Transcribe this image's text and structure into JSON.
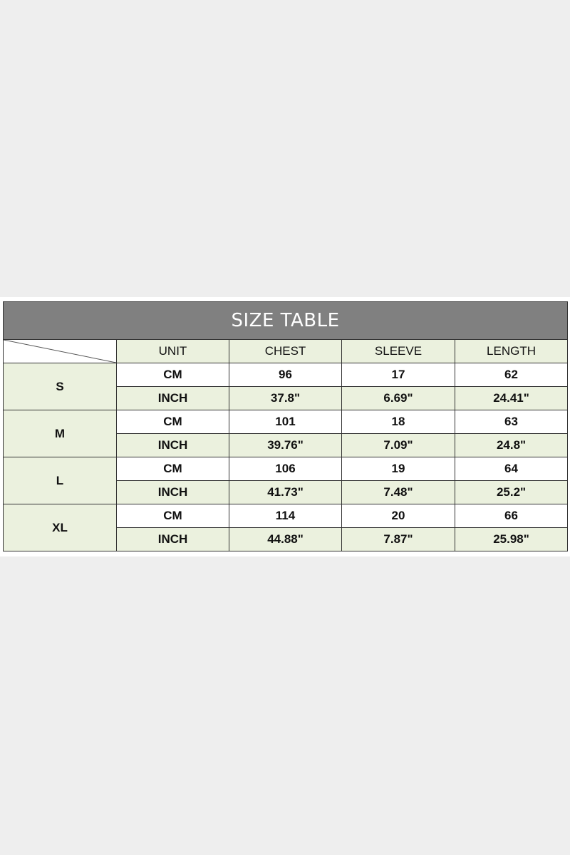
{
  "title": "SIZE TABLE",
  "headers": [
    "UNIT",
    "CHEST",
    "SLEEVE",
    "LENGTH"
  ],
  "colors": {
    "title_bg": "#808080",
    "cell_green": "#ebf1de"
  },
  "rows": [
    {
      "size": "S",
      "cm": [
        "CM",
        "96",
        "17",
        "62"
      ],
      "inch": [
        "INCH",
        "37.8\"",
        "6.69\"",
        "24.41\""
      ]
    },
    {
      "size": "M",
      "cm": [
        "CM",
        "101",
        "18",
        "63"
      ],
      "inch": [
        "INCH",
        "39.76\"",
        "7.09\"",
        "24.8\""
      ]
    },
    {
      "size": "L",
      "cm": [
        "CM",
        "106",
        "19",
        "64"
      ],
      "inch": [
        "INCH",
        "41.73\"",
        "7.48\"",
        "25.2\""
      ]
    },
    {
      "size": "XL",
      "cm": [
        "CM",
        "114",
        "20",
        "66"
      ],
      "inch": [
        "INCH",
        "44.88\"",
        "7.87\"",
        "25.98\""
      ]
    }
  ]
}
